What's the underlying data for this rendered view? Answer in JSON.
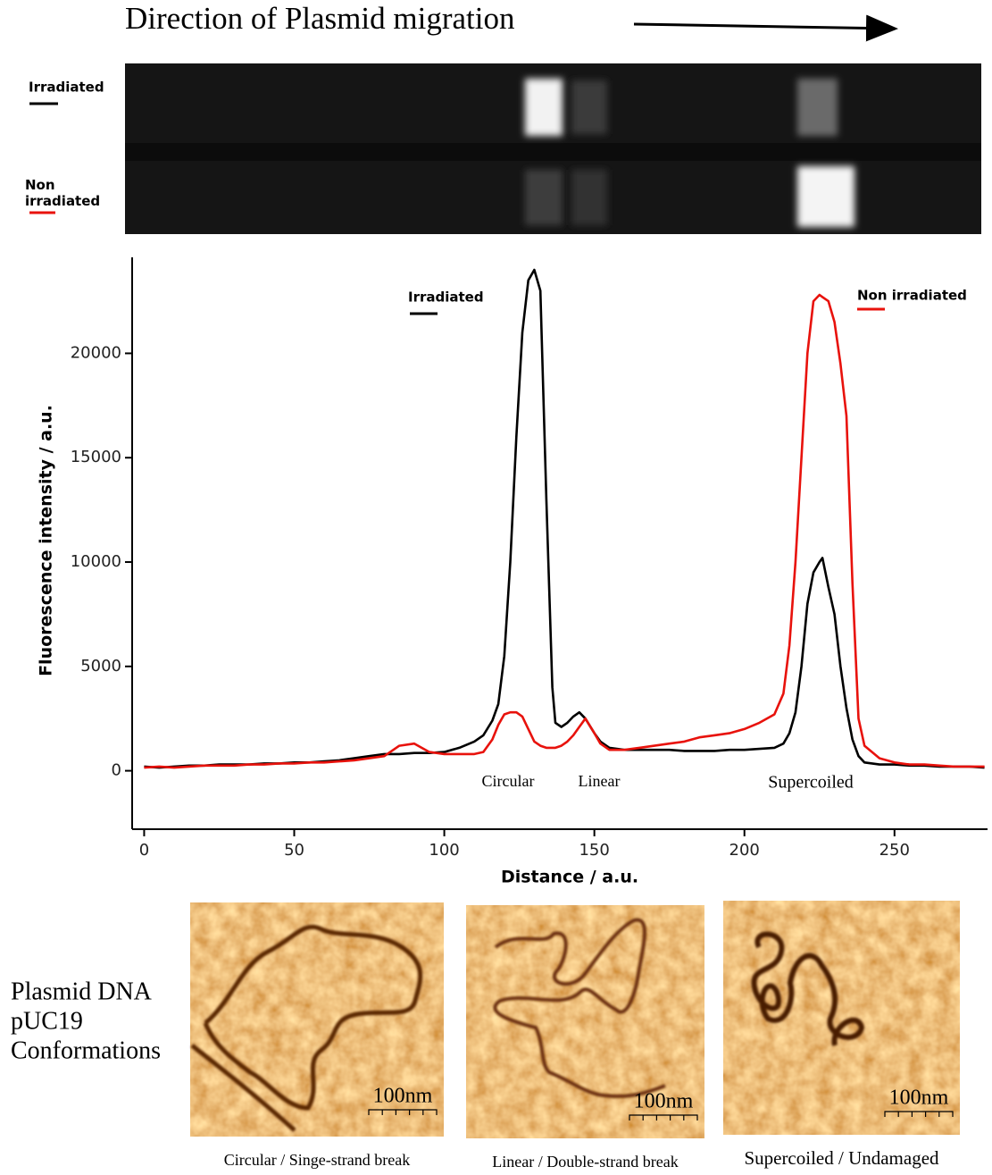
{
  "header": {
    "title": "Direction of Plasmid migration"
  },
  "gel": {
    "labels": [
      "Irradiated",
      "Non irradiated"
    ]
  },
  "chart_data": {
    "type": "line",
    "xlabel": "Distance / a.u.",
    "ylabel": "Fluorescence intensity / a.u.",
    "annotations": [
      "Circular",
      "Linear",
      "Supercoiled"
    ],
    "xlim": [
      -4,
      281
    ],
    "ylim": [
      -2800,
      24600
    ],
    "xticks": [
      0,
      50,
      100,
      150,
      200,
      250
    ],
    "yticks": [
      0,
      5000,
      10000,
      15000,
      20000
    ],
    "x": [
      0,
      5,
      10,
      15,
      20,
      25,
      30,
      35,
      40,
      45,
      50,
      55,
      60,
      65,
      70,
      75,
      80,
      85,
      90,
      95,
      100,
      105,
      110,
      113,
      116,
      118,
      120,
      122,
      124,
      126,
      128,
      130,
      132,
      134,
      136,
      137,
      139,
      141,
      143,
      145,
      147,
      150,
      152,
      155,
      160,
      165,
      170,
      175,
      180,
      185,
      190,
      195,
      200,
      205,
      210,
      213,
      215,
      217,
      219,
      221,
      223,
      225,
      226,
      228,
      230,
      232,
      234,
      236,
      238,
      240,
      245,
      250,
      255,
      260,
      265,
      270,
      275,
      280
    ],
    "series": [
      {
        "name": "Irradiated",
        "color": "#000000",
        "values": [
          200,
          150,
          200,
          250,
          250,
          300,
          300,
          300,
          350,
          350,
          400,
          400,
          450,
          500,
          600,
          700,
          800,
          800,
          850,
          850,
          900,
          1100,
          1400,
          1700,
          2400,
          3200,
          5500,
          10000,
          16000,
          21000,
          23500,
          24000,
          23000,
          13000,
          4000,
          2300,
          2100,
          2300,
          2600,
          2800,
          2500,
          1800,
          1400,
          1100,
          1000,
          1000,
          1000,
          1000,
          950,
          950,
          950,
          1000,
          1000,
          1050,
          1100,
          1300,
          1800,
          2800,
          5000,
          8000,
          9500,
          10000,
          10200,
          8800,
          7500,
          5000,
          3000,
          1500,
          700,
          400,
          300,
          300,
          250,
          250,
          200,
          200,
          200,
          150
        ]
      },
      {
        "name": "Non irradiated",
        "color": "#e8120c",
        "values": [
          150,
          200,
          150,
          200,
          250,
          250,
          250,
          300,
          300,
          350,
          350,
          400,
          400,
          450,
          500,
          600,
          700,
          1200,
          1300,
          900,
          800,
          800,
          800,
          900,
          1500,
          2200,
          2700,
          2800,
          2800,
          2600,
          2000,
          1400,
          1200,
          1100,
          1100,
          1100,
          1200,
          1400,
          1700,
          2100,
          2500,
          1800,
          1300,
          1000,
          1000,
          1100,
          1200,
          1300,
          1400,
          1600,
          1700,
          1800,
          2000,
          2300,
          2700,
          3700,
          6000,
          10000,
          15000,
          20000,
          22500,
          22800,
          22700,
          22500,
          21500,
          19500,
          17000,
          9000,
          2500,
          1200,
          600,
          400,
          300,
          300,
          250,
          200,
          200,
          200
        ]
      }
    ]
  },
  "afm": {
    "title_lines": [
      "Plasmid DNA",
      "pUC19",
      "Conformations"
    ],
    "panels": [
      {
        "scale": "100nm",
        "caption": "Circular / Singe-strand break"
      },
      {
        "scale": "100nm",
        "caption": "Linear / Double-strand break"
      },
      {
        "scale": "100nm",
        "caption": "Supercoiled / Undamaged"
      }
    ]
  }
}
